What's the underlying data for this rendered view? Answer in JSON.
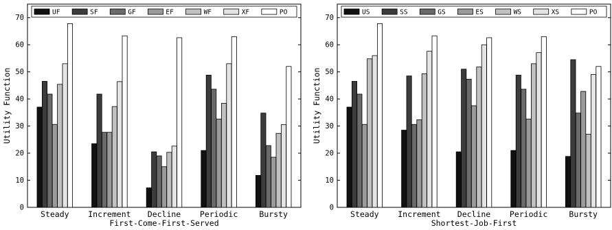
{
  "chart_data": [
    {
      "type": "bar",
      "title": "",
      "xlabel": "First-Come-First-Served",
      "ylabel": "Utility Function",
      "ylim": [
        0,
        75
      ],
      "yticks": [
        0,
        10,
        20,
        30,
        40,
        50,
        60,
        70
      ],
      "grid": false,
      "legend_position": "top",
      "categories": [
        "Steady",
        "Increment",
        "Decline",
        "Periodic",
        "Bursty"
      ],
      "series": [
        {
          "name": "UF",
          "color": "#111111",
          "values": [
            37,
            23.5,
            7.2,
            21,
            11.8
          ]
        },
        {
          "name": "SF",
          "color": "#3c3c3c",
          "values": [
            46.5,
            41.8,
            20.5,
            48.8,
            34.8
          ]
        },
        {
          "name": "GF",
          "color": "#6a6a6a",
          "values": [
            41.8,
            27.7,
            19,
            43.6,
            22.8
          ]
        },
        {
          "name": "EF",
          "color": "#9a9a9a",
          "values": [
            30.6,
            27.7,
            15,
            32.6,
            18.5
          ]
        },
        {
          "name": "WF",
          "color": "#c0c0c0",
          "values": [
            45.4,
            37.2,
            20.3,
            38.4,
            27.3
          ]
        },
        {
          "name": "XF",
          "color": "#e4e4e4",
          "values": [
            53,
            46.4,
            22.6,
            53,
            30.5
          ]
        },
        {
          "name": "PO",
          "color": "#ffffff",
          "values": [
            67.8,
            63.3,
            62.6,
            63,
            52
          ]
        }
      ]
    },
    {
      "type": "bar",
      "title": "",
      "xlabel": "Shortest-Job-First",
      "ylabel": "Utility Function",
      "ylim": [
        0,
        75
      ],
      "yticks": [
        0,
        10,
        20,
        30,
        40,
        50,
        60,
        70
      ],
      "grid": false,
      "legend_position": "top",
      "categories": [
        "Steady",
        "Increment",
        "Decline",
        "Periodic",
        "Bursty"
      ],
      "series": [
        {
          "name": "US",
          "color": "#111111",
          "values": [
            37,
            28.5,
            20.5,
            21,
            18.8
          ]
        },
        {
          "name": "SS",
          "color": "#3c3c3c",
          "values": [
            46.5,
            48.5,
            51,
            48.8,
            54.5
          ]
        },
        {
          "name": "GS",
          "color": "#6a6a6a",
          "values": [
            41.8,
            30.6,
            47.3,
            43.6,
            34.8
          ]
        },
        {
          "name": "ES",
          "color": "#9a9a9a",
          "values": [
            30.6,
            32.3,
            37.5,
            32.6,
            42.8
          ]
        },
        {
          "name": "WS",
          "color": "#c0c0c0",
          "values": [
            54.8,
            49.3,
            51.8,
            53,
            27
          ]
        },
        {
          "name": "XS",
          "color": "#e4e4e4",
          "values": [
            56,
            57.6,
            60,
            57.1,
            49
          ]
        },
        {
          "name": "PO",
          "color": "#ffffff",
          "values": [
            67.8,
            63.3,
            62.6,
            63,
            52
          ]
        }
      ]
    }
  ]
}
